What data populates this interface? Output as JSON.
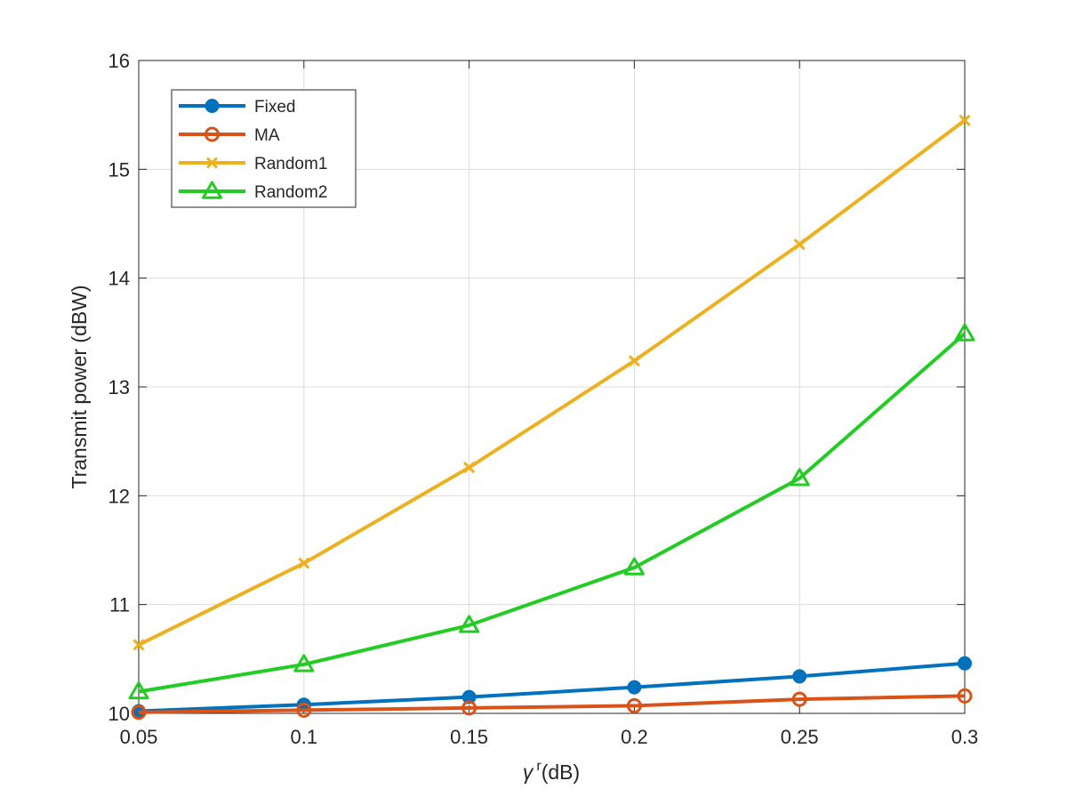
{
  "chart_data": {
    "type": "line",
    "title": "",
    "xlabel": "γ r(dB)",
    "xlabel_symbol": "γ",
    "xlabel_superscript": "r",
    "xlabel_unit": "(dB)",
    "ylabel": "Transmit power (dBW)",
    "xlim": [
      0.05,
      0.3
    ],
    "ylim": [
      10,
      16
    ],
    "x": [
      0.05,
      0.1,
      0.15,
      0.2,
      0.25,
      0.3
    ],
    "xticks": [
      0.05,
      0.1,
      0.15,
      0.2,
      0.25,
      0.3
    ],
    "xtick_labels": [
      "0.05",
      "0.1",
      "0.15",
      "0.2",
      "0.25",
      "0.3"
    ],
    "yticks": [
      10,
      11,
      12,
      13,
      14,
      15,
      16
    ],
    "ytick_labels": [
      "10",
      "11",
      "12",
      "13",
      "14",
      "15",
      "16"
    ],
    "grid": true,
    "legend_position": "top-left",
    "series": [
      {
        "name": "Fixed",
        "color": "#0072BD",
        "marker": "filled-circle",
        "values": [
          10.02,
          10.08,
          10.15,
          10.24,
          10.34,
          10.46
        ]
      },
      {
        "name": "MA",
        "color": "#D95319",
        "marker": "circle",
        "values": [
          10.01,
          10.03,
          10.05,
          10.07,
          10.13,
          10.16
        ]
      },
      {
        "name": "Random1",
        "color": "#EDB120",
        "marker": "x",
        "values": [
          10.63,
          11.38,
          12.26,
          13.24,
          14.31,
          15.45
        ]
      },
      {
        "name": "Random2",
        "color": "#22CC22",
        "marker": "triangle",
        "values": [
          10.2,
          10.45,
          10.81,
          11.34,
          12.16,
          13.49
        ]
      }
    ]
  }
}
